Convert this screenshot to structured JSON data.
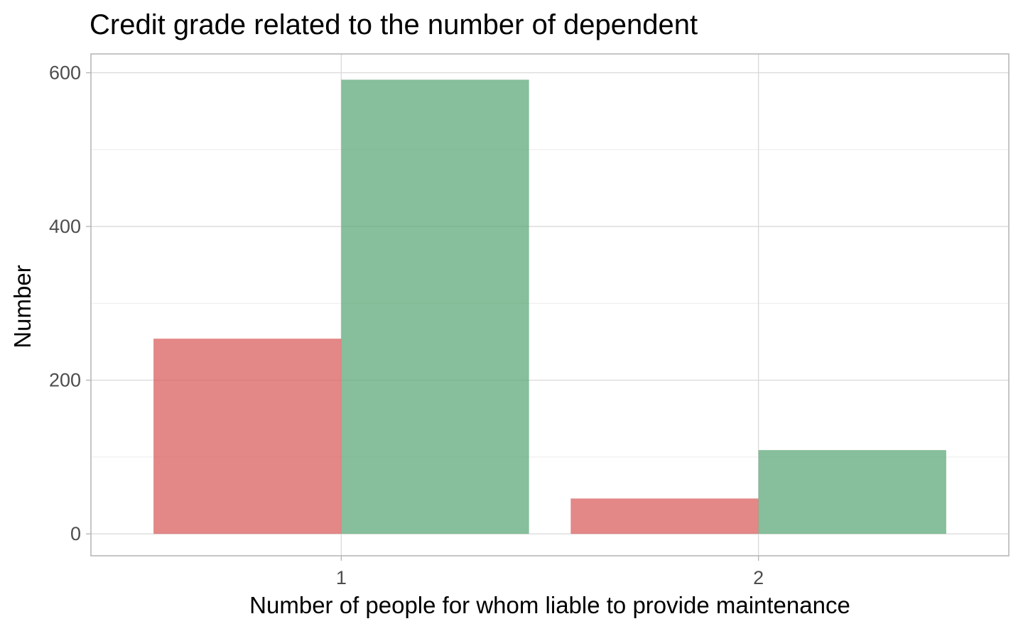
{
  "chart_data": {
    "type": "bar",
    "title": "Credit grade related to the number of dependent",
    "xlabel": "Number of people for whom liable to provide maintenance",
    "ylabel": "Number",
    "categories": [
      "1",
      "2"
    ],
    "series": [
      {
        "color": "#d95f5f",
        "values": [
          254,
          46
        ]
      },
      {
        "color": "#5fa87a",
        "values": [
          591,
          109
        ]
      }
    ],
    "ylim": [
      -28.5,
      624.5
    ],
    "yticks": [
      0,
      200,
      400,
      600
    ],
    "y_minor_ticks": [
      100,
      300,
      500
    ],
    "grid": true,
    "legend": "none",
    "bar_opacity": 0.75,
    "panel_border_color": "#b3b3b3",
    "grid_color": "#d9d9d9",
    "minor_grid_color": "#ebebeb"
  }
}
